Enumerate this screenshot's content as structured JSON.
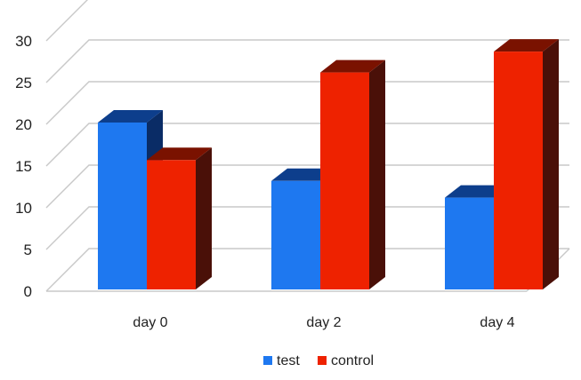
{
  "chart_data": {
    "type": "bar",
    "style": "3d-clustered-column",
    "categories": [
      "day 0",
      "day 2",
      "day 4"
    ],
    "series": [
      {
        "name": "test",
        "values": [
          20,
          13,
          11
        ],
        "color": "#1e78f0",
        "top_color": "#0d3e8c",
        "side_color": "#0a2c66"
      },
      {
        "name": "control",
        "values": [
          15.5,
          26,
          28.5
        ],
        "color": "#ee2200",
        "top_color": "#7a1200",
        "side_color": "#4a1008"
      }
    ],
    "y_ticks": [
      0,
      5,
      10,
      15,
      20,
      25,
      30
    ],
    "ylim": [
      0,
      32
    ],
    "grid": true,
    "legend_position": "bottom-center",
    "title": "",
    "xlabel": "",
    "ylabel": ""
  }
}
